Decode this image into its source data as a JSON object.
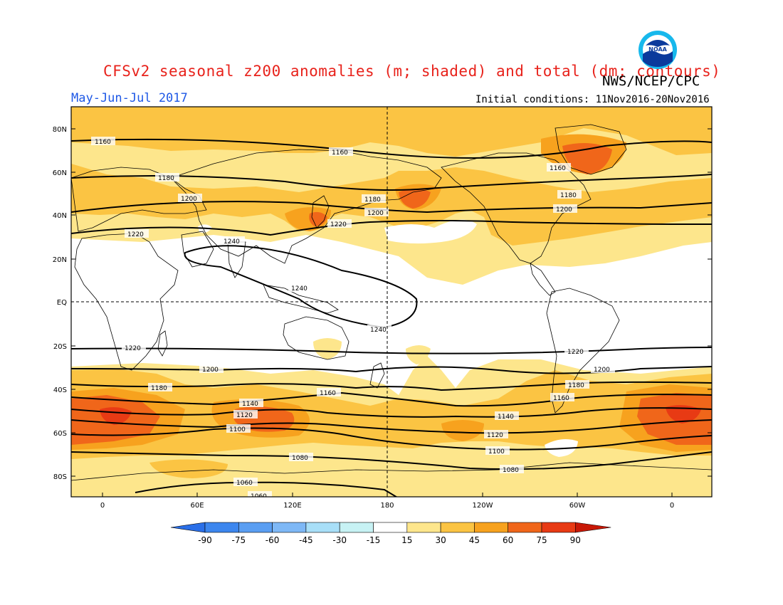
{
  "title": "CFSv2 seasonal z200 anomalies (m; shaded) and total (dm; contours)",
  "agency": "NWS/NCEP/CPC",
  "period": "May-Jun-Jul 2017",
  "initial_conditions": "Initial conditions: 11Nov2016-20Nov2016",
  "logo_text": "NOAA",
  "lat_labels": [
    "80N",
    "60N",
    "40N",
    "20N",
    "EQ",
    "20S",
    "40S",
    "60S",
    "80S"
  ],
  "lon_labels": [
    "0",
    "60E",
    "120E",
    "180",
    "120W",
    "60W",
    "0"
  ],
  "contour_levels": {
    "northern": [
      "1160",
      "1180",
      "1200",
      "1220",
      "1240"
    ],
    "southern": [
      "1240",
      "1220",
      "1200",
      "1180",
      "1160",
      "1140",
      "1120",
      "1100",
      "1080",
      "1060"
    ]
  },
  "contour_labels": [
    "1160",
    "1160",
    "1160",
    "1180",
    "1180",
    "1180",
    "1200",
    "1200",
    "1200",
    "1220",
    "1220",
    "1240",
    "1240",
    "1240",
    "1220",
    "1220",
    "1200",
    "1200",
    "1180",
    "1180",
    "1160",
    "1160",
    "1140",
    "1140",
    "1120",
    "1120",
    "1100",
    "1100",
    "1080",
    "1080",
    "1060",
    "1060"
  ],
  "colorbar": {
    "ticks": [
      "-90",
      "-75",
      "-60",
      "-45",
      "-30",
      "-15",
      "15",
      "30",
      "45",
      "60",
      "75",
      "90"
    ],
    "colors": [
      "#2a6fe8",
      "#3c86ee",
      "#5a9ef2",
      "#7eb8f6",
      "#a8dff8",
      "#c7f2f4",
      "#ffffff",
      "#fde68c",
      "#fbc443",
      "#f7a21e",
      "#f0661a",
      "#e83a14",
      "#c81806"
    ]
  },
  "anomaly_colors": {
    "15-30": "#fde68c",
    "30-45": "#fbc443",
    "45-60": "#f7a21e",
    "60-75": "#f0661a",
    "75-90": "#e83a14"
  }
}
